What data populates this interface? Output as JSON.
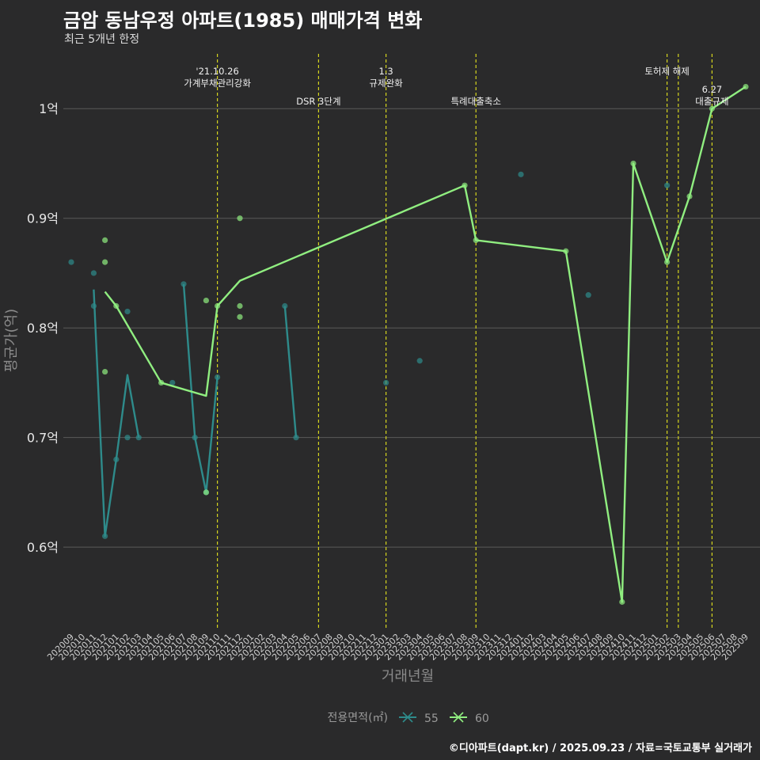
{
  "title": "금암 동남우정 아파트(1985) 매매가격 변화",
  "subtitle": "최근 5개년 한정",
  "caption": "©디아파트(dapt.kr) / 2025.09.23 / 자료=국토교통부 실거래가",
  "chart_data": {
    "type": "line",
    "xlabel": "거래년월",
    "ylabel": "평균가(억)",
    "ylim": [
      0.525,
      1.05
    ],
    "y_ticks": [
      0.6,
      0.7,
      0.8,
      0.9,
      1.0
    ],
    "y_tick_labels": [
      "0.6억",
      "0.7억",
      "0.8억",
      "0.9억",
      "1억"
    ],
    "x_categories": [
      "202009",
      "202010",
      "202011",
      "202012",
      "202101",
      "202102",
      "202103",
      "202104",
      "202105",
      "202106",
      "202107",
      "202108",
      "202109",
      "202110",
      "202111",
      "202112",
      "202201",
      "202202",
      "202203",
      "202204",
      "202205",
      "202206",
      "202207",
      "202208",
      "202209",
      "202210",
      "202211",
      "202212",
      "202301",
      "202302",
      "202303",
      "202304",
      "202305",
      "202306",
      "202307",
      "202308",
      "202309",
      "202310",
      "202311",
      "202312",
      "202401",
      "202402",
      "202403",
      "202404",
      "202405",
      "202406",
      "202407",
      "202408",
      "202409",
      "202410",
      "202411",
      "202412",
      "202501",
      "202502",
      "202503",
      "202504",
      "202505",
      "202506",
      "202507",
      "202508",
      "202509"
    ],
    "grid": true,
    "legend": {
      "title": "전용면적(㎡)",
      "position": "bottom"
    },
    "series": [
      {
        "name": "55",
        "color": "#2e8b8b",
        "line": [
          [
            "202011",
            0.835
          ],
          [
            "202012",
            0.61
          ],
          [
            "202101",
            0.68
          ],
          [
            "202102",
            0.757
          ],
          [
            "202103",
            0.7
          ],
          null,
          [
            "202107",
            0.84
          ],
          [
            "202108",
            0.7
          ],
          [
            "202109",
            0.65
          ],
          [
            "202110",
            0.755
          ],
          null,
          [
            "202204",
            0.82
          ],
          [
            "202205",
            0.7
          ]
        ],
        "points": [
          [
            "202009",
            0.86
          ],
          [
            "202011",
            0.85
          ],
          [
            "202011",
            0.82
          ],
          [
            "202012",
            0.61
          ],
          [
            "202101",
            0.68
          ],
          [
            "202102",
            0.815
          ],
          [
            "202102",
            0.7
          ],
          [
            "202103",
            0.7
          ],
          [
            "202106",
            0.75
          ],
          [
            "202107",
            0.84
          ],
          [
            "202108",
            0.7
          ],
          [
            "202109",
            0.65
          ],
          [
            "202110",
            0.755
          ],
          [
            "202204",
            0.82
          ],
          [
            "202205",
            0.7
          ],
          [
            "202301",
            0.75
          ],
          [
            "202304",
            0.77
          ],
          [
            "202401",
            0.94
          ],
          [
            "202407",
            0.83
          ],
          [
            "202502",
            0.93
          ]
        ]
      },
      {
        "name": "60",
        "color": "#90ee80",
        "line": [
          [
            "202012",
            0.833
          ],
          [
            "202101",
            0.82
          ],
          [
            "202105",
            0.75
          ],
          [
            "202109",
            0.738
          ],
          [
            "202110",
            0.82
          ],
          [
            "202112",
            0.843
          ],
          [
            "202308",
            0.93
          ],
          [
            "202309",
            0.88
          ],
          [
            "202405",
            0.87
          ],
          [
            "202410",
            0.55
          ],
          [
            "202411",
            0.95
          ],
          [
            "202502",
            0.86
          ],
          [
            "202504",
            0.92
          ],
          [
            "202506",
            1.0
          ],
          [
            "202509",
            1.02
          ]
        ],
        "points": [
          [
            "202012",
            0.88
          ],
          [
            "202012",
            0.86
          ],
          [
            "202012",
            0.76
          ],
          [
            "202101",
            0.82
          ],
          [
            "202105",
            0.75
          ],
          [
            "202109",
            0.825
          ],
          [
            "202109",
            0.65
          ],
          [
            "202110",
            0.82
          ],
          [
            "202112",
            0.9
          ],
          [
            "202112",
            0.82
          ],
          [
            "202112",
            0.81
          ],
          [
            "202308",
            0.93
          ],
          [
            "202309",
            0.88
          ],
          [
            "202405",
            0.87
          ],
          [
            "202410",
            0.55
          ],
          [
            "202411",
            0.95
          ],
          [
            "202502",
            0.86
          ],
          [
            "202504",
            0.92
          ],
          [
            "202506",
            1.0
          ],
          [
            "202509",
            1.02
          ]
        ]
      }
    ],
    "annotations": [
      {
        "x": "202110",
        "lines": [
          "'21.10.26",
          "가계부채관리강화"
        ],
        "level": 0
      },
      {
        "x": "202207",
        "lines": [
          "DSR 3단계"
        ],
        "level": 1
      },
      {
        "x": "202301",
        "lines": [
          "1.3",
          "규제완화"
        ],
        "level": 0
      },
      {
        "x": "202309",
        "lines": [
          "특례대출축소"
        ],
        "level": 1
      },
      {
        "x": "202502",
        "lines": [
          "토허제 해제"
        ],
        "level": 0
      },
      {
        "x": "202503",
        "lines": [],
        "level": 0
      },
      {
        "x": "202506",
        "lines": [
          "6.27",
          "대출규제"
        ],
        "level": 1
      }
    ]
  }
}
